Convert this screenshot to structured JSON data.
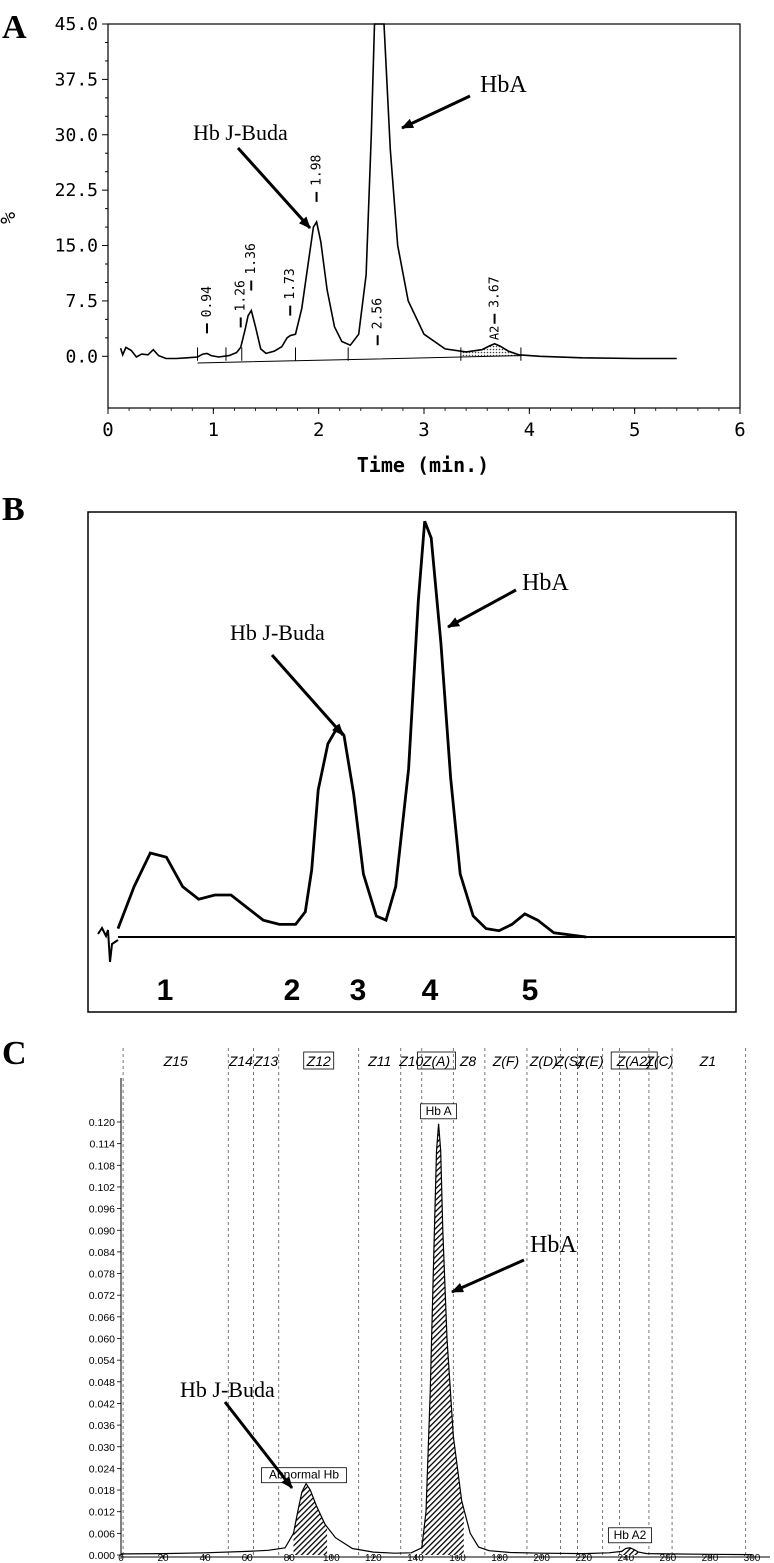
{
  "chart_data": [
    {
      "panel_label": "A",
      "type": "line",
      "xlabel": "Time (min.)",
      "ylabel": "%",
      "xlim": [
        0,
        6
      ],
      "ylim": [
        -7,
        45
      ],
      "x_ticks": [
        0,
        1,
        2,
        3,
        4,
        5,
        6
      ],
      "y_ticks": [
        "0.0",
        "7.5",
        "15.0",
        "22.5",
        "30.0",
        "37.5",
        "45.0"
      ],
      "y_tick_values": [
        0,
        7.5,
        15,
        22.5,
        30,
        37.5,
        45
      ],
      "grid": false,
      "series": [
        {
          "x": [
            0.12,
            0.14,
            0.17,
            0.22,
            0.27,
            0.32,
            0.38,
            0.43,
            0.48,
            0.55,
            0.65,
            0.75,
            0.85,
            0.9,
            0.94,
            0.98,
            1.05,
            1.15,
            1.22,
            1.26,
            1.3,
            1.33,
            1.36,
            1.4,
            1.45,
            1.5,
            1.58,
            1.65,
            1.7,
            1.73,
            1.78,
            1.84,
            1.9,
            1.95,
            1.98,
            2.02,
            2.08,
            2.15,
            2.22,
            2.3,
            2.38,
            2.45,
            2.5,
            2.53,
            2.55,
            2.56,
            2.58,
            2.62,
            2.68,
            2.75,
            2.85,
            3.0,
            3.2,
            3.4,
            3.55,
            3.62,
            3.67,
            3.72,
            3.8,
            3.9,
            4.1,
            4.5,
            5.0,
            5.4
          ],
          "y": [
            1.1,
            0.2,
            1.2,
            0.8,
            -0.1,
            0.3,
            0.2,
            0.9,
            0.1,
            -0.3,
            -0.3,
            -0.2,
            -0.1,
            0.3,
            0.4,
            0.1,
            -0.1,
            0.1,
            0.5,
            1.2,
            3.5,
            5.5,
            6.2,
            4.0,
            1.0,
            0.4,
            0.7,
            1.3,
            2.5,
            2.8,
            3.0,
            6.5,
            12.5,
            17.5,
            18.2,
            15.5,
            9.0,
            4.0,
            2.0,
            1.5,
            3.0,
            11.0,
            30.0,
            45.0,
            45.0,
            45.0,
            45.0,
            45.0,
            28.0,
            15.0,
            7.5,
            3.0,
            1.0,
            0.6,
            0.9,
            1.4,
            1.7,
            1.4,
            0.7,
            0.2,
            0.0,
            -0.2,
            -0.3,
            -0.3
          ]
        }
      ],
      "shaded_peak": {
        "x": [
          3.35,
          3.92
        ],
        "label": "A2"
      },
      "peak_labels": [
        {
          "label": "0.94",
          "x": 0.94
        },
        {
          "label": "1.26",
          "x": 1.26
        },
        {
          "label": "1.36",
          "x": 1.36
        },
        {
          "label": "1.73",
          "x": 1.73
        },
        {
          "label": "1.98",
          "x": 1.98
        },
        {
          "label": "2.56",
          "x": 2.56
        },
        {
          "label": "3.67",
          "x": 3.67
        }
      ],
      "annotations": [
        {
          "text": "Hb J-Buda"
        },
        {
          "text": "HbA"
        }
      ]
    },
    {
      "panel_label": "B",
      "type": "line",
      "peak_numbers": [
        "1",
        "2",
        "3",
        "4",
        "5"
      ],
      "series": [
        {
          "x": [
            0,
            0.05,
            0.1,
            0.15,
            0.2,
            0.25,
            0.3,
            0.35,
            0.4,
            0.45,
            0.5,
            0.55,
            0.58,
            0.6,
            0.62,
            0.65,
            0.68,
            0.7,
            0.73,
            0.76,
            0.8,
            0.83,
            0.86,
            0.9,
            0.93,
            0.95,
            0.97,
            1.0,
            1.03,
            1.06,
            1.1,
            1.14,
            1.18,
            1.22,
            1.26,
            1.3,
            1.35,
            1.4,
            1.45
          ],
          "y": [
            0.02,
            0.12,
            0.2,
            0.19,
            0.12,
            0.09,
            0.1,
            0.1,
            0.07,
            0.04,
            0.03,
            0.03,
            0.06,
            0.16,
            0.35,
            0.46,
            0.5,
            0.48,
            0.34,
            0.15,
            0.05,
            0.04,
            0.12,
            0.4,
            0.8,
            0.99,
            0.95,
            0.7,
            0.38,
            0.15,
            0.05,
            0.02,
            0.015,
            0.03,
            0.055,
            0.04,
            0.01,
            0.005,
            0.0
          ]
        }
      ],
      "annotations": [
        {
          "text": "Hb J-Buda"
        },
        {
          "text": "HbA"
        }
      ]
    },
    {
      "panel_label": "C",
      "type": "area",
      "xlim": [
        0,
        300
      ],
      "ylim": [
        0,
        0.12
      ],
      "x_ticks": [
        0,
        20,
        40,
        60,
        80,
        100,
        120,
        140,
        160,
        180,
        200,
        220,
        240,
        260,
        280,
        300
      ],
      "y_ticks": [
        "0.000",
        "0.006",
        "0.012",
        "0.018",
        "0.024",
        "0.030",
        "0.036",
        "0.042",
        "0.048",
        "0.054",
        "0.060",
        "0.066",
        "0.072",
        "0.078",
        "0.084",
        "0.090",
        "0.096",
        "0.102",
        "0.108",
        "0.114",
        "0.120"
      ],
      "y_tick_values": [
        0,
        0.006,
        0.012,
        0.018,
        0.024,
        0.03,
        0.036,
        0.042,
        0.048,
        0.054,
        0.06,
        0.066,
        0.072,
        0.078,
        0.084,
        0.09,
        0.096,
        0.102,
        0.108,
        0.114,
        0.12
      ],
      "zone_lines_x": [
        1,
        51,
        63,
        75,
        113,
        133,
        143,
        158,
        173,
        193,
        209,
        217,
        229,
        237,
        251,
        262,
        297
      ],
      "zones": [
        {
          "label": "Z15",
          "x": 26,
          "boxed": false
        },
        {
          "label": "Z14",
          "x": 57,
          "boxed": false
        },
        {
          "label": "Z13",
          "x": 69,
          "boxed": false
        },
        {
          "label": "Z12",
          "x": 94,
          "boxed": true
        },
        {
          "label": "Z11",
          "x": 123,
          "boxed": false
        },
        {
          "label": "Z10",
          "x": 138,
          "boxed": false
        },
        {
          "label": "Z(A)",
          "x": 150,
          "boxed": true
        },
        {
          "label": "Z8",
          "x": 165,
          "boxed": false
        },
        {
          "label": "Z(F)",
          "x": 183,
          "boxed": false
        },
        {
          "label": "Z(D)",
          "x": 201,
          "boxed": false
        },
        {
          "label": "Z(S)",
          "x": 213,
          "boxed": false
        },
        {
          "label": "Z(E)",
          "x": 223,
          "boxed": false
        },
        {
          "label": "Z(A2)",
          "x": 244,
          "boxed": true
        },
        {
          "label": "Z(C)",
          "x": 256,
          "boxed": false
        },
        {
          "label": "Z1",
          "x": 279,
          "boxed": false
        }
      ],
      "series": [
        {
          "x": [
            0,
            20,
            40,
            60,
            70,
            78,
            82,
            84,
            86,
            88,
            90,
            93,
            97,
            102,
            110,
            120,
            130,
            138,
            143,
            145,
            147,
            149,
            150,
            151,
            152,
            153,
            155,
            158,
            162,
            166,
            170,
            175,
            185,
            200,
            220,
            232,
            238,
            240,
            242,
            244,
            246,
            250,
            260,
            280,
            300
          ],
          "y": [
            0.0003,
            0.0004,
            0.0006,
            0.001,
            0.0013,
            0.002,
            0.006,
            0.012,
            0.0175,
            0.0198,
            0.018,
            0.0135,
            0.0085,
            0.0048,
            0.0018,
            0.0008,
            0.0005,
            0.0006,
            0.002,
            0.012,
            0.045,
            0.09,
            0.112,
            0.1195,
            0.112,
            0.09,
            0.06,
            0.033,
            0.015,
            0.006,
            0.0022,
            0.0012,
            0.0007,
            0.0005,
            0.0004,
            0.0006,
            0.001,
            0.0018,
            0.002,
            0.0015,
            0.0008,
            0.0004,
            0.0003,
            0.0002,
            0.0001
          ]
        }
      ],
      "filled_ranges": [
        [
          82,
          98
        ],
        [
          143,
          163
        ],
        [
          238,
          246
        ]
      ],
      "peak_labels": [
        {
          "label": "Abnormal Hb",
          "x": 87
        },
        {
          "label": "Hb A",
          "x": 151
        },
        {
          "label": "Hb A2",
          "x": 242
        }
      ],
      "annotations": [
        {
          "text": "Hb J-Buda"
        },
        {
          "text": "HbA"
        }
      ]
    }
  ]
}
